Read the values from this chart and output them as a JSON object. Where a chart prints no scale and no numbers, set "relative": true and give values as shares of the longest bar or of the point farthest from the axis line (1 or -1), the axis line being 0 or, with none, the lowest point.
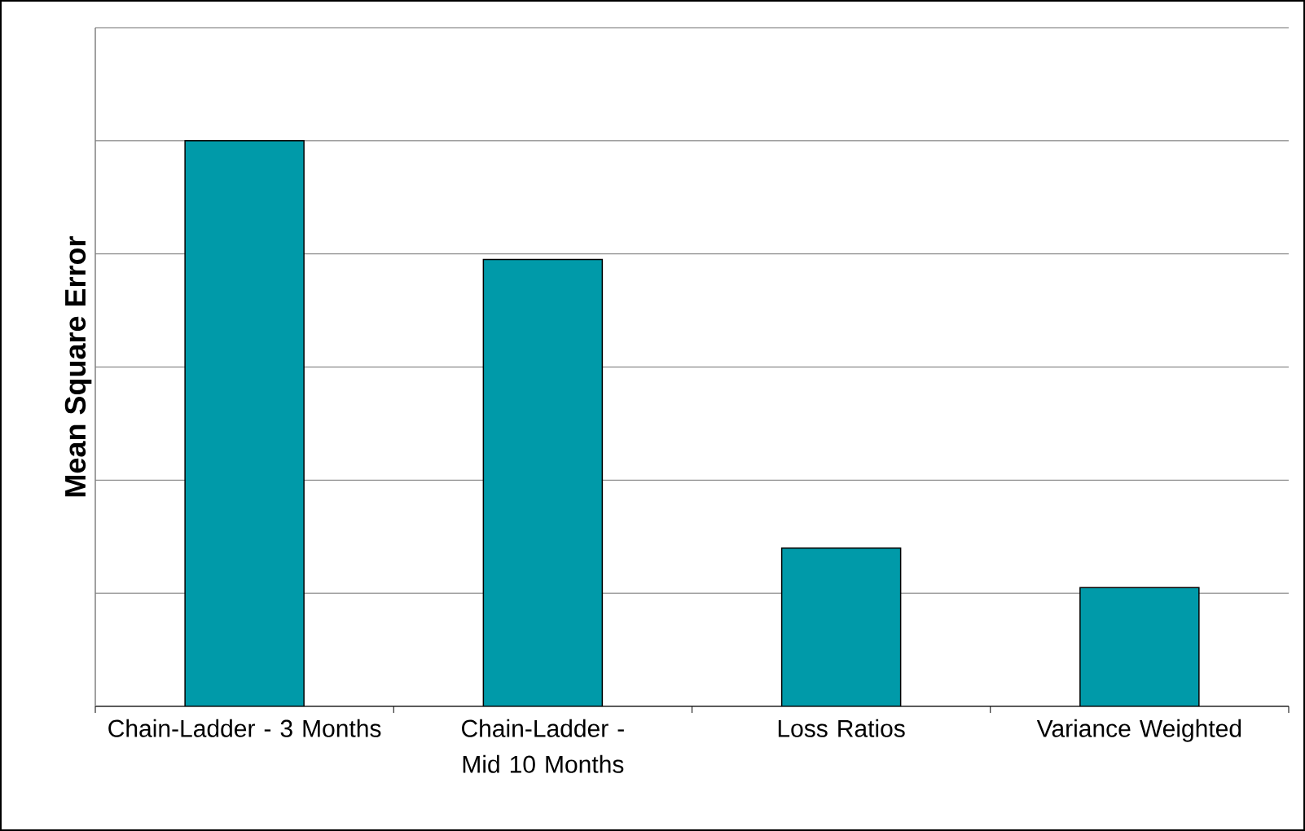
{
  "chart_data": {
    "type": "bar",
    "ylabel": "Mean Square Error",
    "categories": [
      "Chain-Ladder - 3 Months",
      "Chain-Ladder - Mid 10 Months",
      "Loss Ratios",
      "Variance Weighted"
    ],
    "values": [
      1,
      0.79,
      0.28,
      0.21
    ],
    "color": "#009aa9",
    "relative": true,
    "grid": "y"
  }
}
